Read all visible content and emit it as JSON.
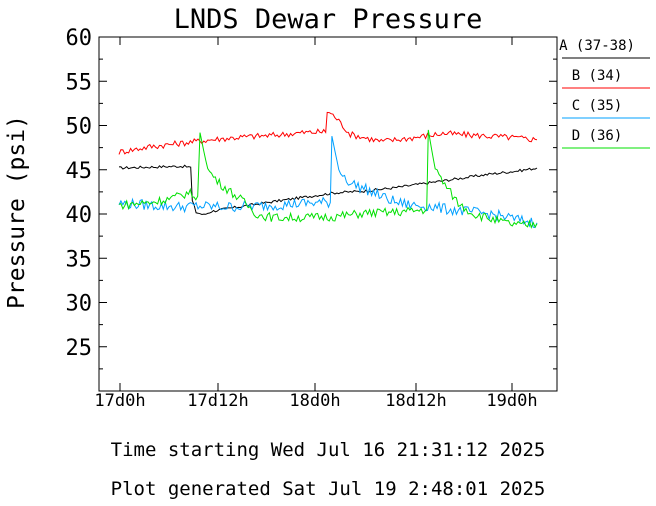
{
  "chart_data": {
    "type": "line",
    "title": "LNDS Dewar Pressure",
    "ylabel": "Pressure (psi)",
    "xlabel": "",
    "ylim": [
      20,
      60
    ],
    "yticks": [
      25,
      30,
      35,
      40,
      45,
      50,
      55,
      60
    ],
    "xlim_hours": [
      -2.5,
      42
    ],
    "xticks": [
      {
        "hour": 2.5,
        "label": "17d0h"
      },
      {
        "hour": 14.5,
        "label": "17d12h"
      },
      {
        "hour": 26.5,
        "label": "18d0h"
      },
      {
        "hour": 38.5,
        "label": "18d12h"
      },
      {
        "hour": 50.5,
        "label": "19d0h"
      }
    ],
    "grid": false,
    "legend_position": "right",
    "series": [
      {
        "name": "A (37-38)",
        "color": "#000000",
        "x": [
          0,
          4,
          8,
          9.3,
          9.5,
          10,
          11,
          12,
          14,
          17,
          20,
          24,
          28,
          32,
          36,
          40,
          44,
          48,
          52,
          54.2
        ],
        "y": [
          45.2,
          45.3,
          45.4,
          45.3,
          41.5,
          40.2,
          39.9,
          40.3,
          40.6,
          41.0,
          41.4,
          41.9,
          42.4,
          42.6,
          43.0,
          43.5,
          44.0,
          44.5,
          44.9,
          45.2
        ]
      },
      {
        "name": "B (34)",
        "color": "#ff0000",
        "x": [
          0,
          4,
          8,
          12,
          16,
          20,
          24,
          26.8,
          27.0,
          28,
          30,
          32,
          34,
          38,
          42,
          46,
          50,
          54.2
        ],
        "y": [
          47.0,
          47.6,
          48.0,
          48.4,
          48.7,
          48.9,
          49.2,
          49.3,
          51.6,
          51.0,
          49.0,
          48.6,
          48.2,
          48.6,
          49.1,
          48.9,
          48.7,
          48.4
        ]
      },
      {
        "name": "C (35)",
        "color": "#00a0ff",
        "x": [
          0,
          4,
          8,
          10,
          14,
          18,
          22,
          26,
          27.4,
          27.6,
          28.5,
          30,
          32,
          34,
          36,
          38,
          40,
          42,
          44,
          46,
          48,
          50,
          52,
          54.2
        ],
        "y": [
          41.2,
          41.0,
          40.8,
          40.9,
          40.8,
          40.9,
          41.1,
          41.3,
          41.3,
          48.8,
          45.0,
          43.5,
          42.8,
          42.0,
          41.3,
          41.0,
          40.9,
          40.6,
          40.4,
          40.2,
          40.0,
          39.7,
          39.3,
          39.0
        ]
      },
      {
        "name": "D (36)",
        "color": "#00e000",
        "x": [
          0,
          4,
          7,
          9,
          10.2,
          10.5,
          11.5,
          13,
          16,
          18,
          20,
          24,
          28,
          32,
          36,
          39.9,
          40.1,
          41,
          42.5,
          44,
          46,
          48,
          50,
          52,
          54.2
        ],
        "y": [
          41.0,
          41.3,
          41.8,
          42.4,
          42.0,
          49.2,
          45.0,
          43.5,
          41.5,
          39.9,
          39.6,
          39.6,
          39.7,
          40.1,
          40.2,
          40.5,
          49.5,
          45.0,
          43.0,
          41.2,
          40.0,
          39.5,
          39.0,
          38.7,
          38.9
        ]
      }
    ]
  },
  "footer": {
    "time_start": "Time starting Wed Jul 16 21:31:12 2025",
    "plot_generated": "Plot generated Sat Jul 19  2:48:01 2025"
  }
}
